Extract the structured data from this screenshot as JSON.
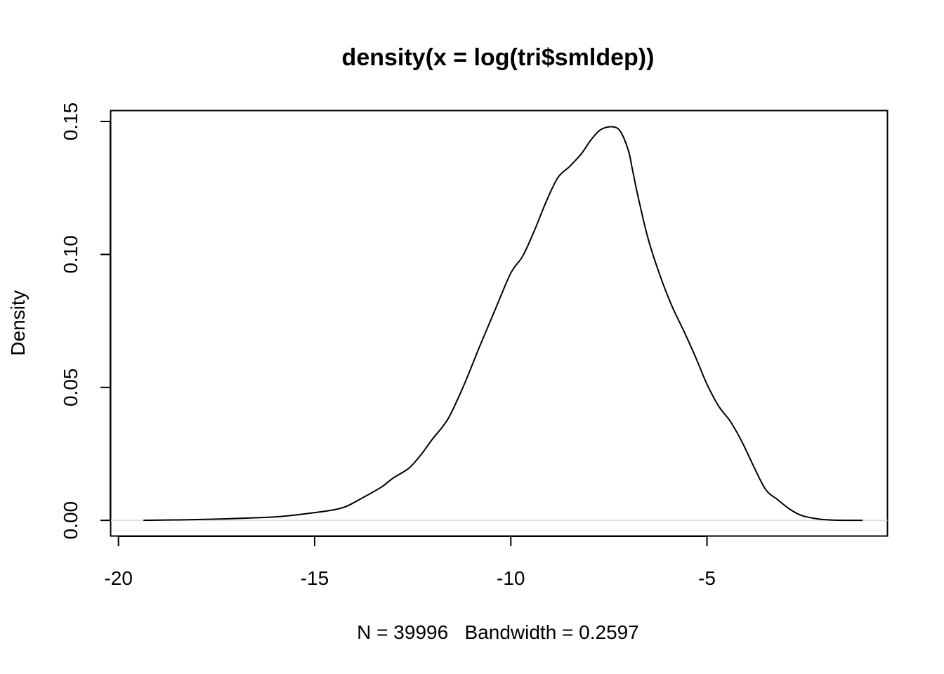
{
  "chart_data": {
    "type": "line",
    "title": "density(x = log(tri$smldep))",
    "xlabel": "N = 39996   Bandwidth = 0.2597",
    "ylabel": "Density",
    "xlim": [
      -20.2,
      -0.4
    ],
    "ylim": [
      -0.0059,
      0.1541
    ],
    "x_ticks": [
      -20,
      -15,
      -10,
      -5
    ],
    "x_tick_labels": [
      "-20",
      "-15",
      "-10",
      "-5"
    ],
    "y_ticks": [
      0.0,
      0.05,
      0.1,
      0.15
    ],
    "y_tick_labels": [
      "0.00",
      "0.05",
      "0.10",
      "0.15"
    ],
    "grid": false,
    "baseline": 0,
    "line_color": "#000000",
    "baseline_color": "#d9d9d9",
    "series": [
      {
        "x": [
          -19.35,
          -18.0,
          -17.0,
          -16.0,
          -15.5,
          -15.0,
          -14.5,
          -14.2,
          -13.8,
          -13.3,
          -13.0,
          -12.6,
          -12.3,
          -12.0,
          -11.6,
          -11.2,
          -10.8,
          -10.4,
          -10.0,
          -9.7,
          -9.4,
          -9.1,
          -8.8,
          -8.5,
          -8.2,
          -7.95,
          -7.7,
          -7.4,
          -7.2,
          -7.0,
          -6.9,
          -6.75,
          -6.5,
          -6.2,
          -5.9,
          -5.6,
          -5.3,
          -5.0,
          -4.7,
          -4.4,
          -4.1,
          -3.8,
          -3.5,
          -3.2,
          -2.9,
          -2.6,
          -2.2,
          -1.8,
          -1.35,
          -1.05
        ],
        "y": [
          0.0,
          0.0003,
          0.0007,
          0.0013,
          0.002,
          0.0029,
          0.004,
          0.0052,
          0.0083,
          0.0125,
          0.0159,
          0.0196,
          0.0245,
          0.0305,
          0.0382,
          0.0507,
          0.0652,
          0.0792,
          0.093,
          0.0993,
          0.1089,
          0.1198,
          0.1289,
          0.1331,
          0.1379,
          0.1432,
          0.147,
          0.148,
          0.1461,
          0.1389,
          0.1319,
          0.1213,
          0.1059,
          0.0922,
          0.0808,
          0.0715,
          0.0617,
          0.0512,
          0.0429,
          0.0371,
          0.0293,
          0.02,
          0.0115,
          0.0078,
          0.0043,
          0.0019,
          0.0006,
          0.0001,
          0.0,
          0.0
        ]
      }
    ]
  }
}
